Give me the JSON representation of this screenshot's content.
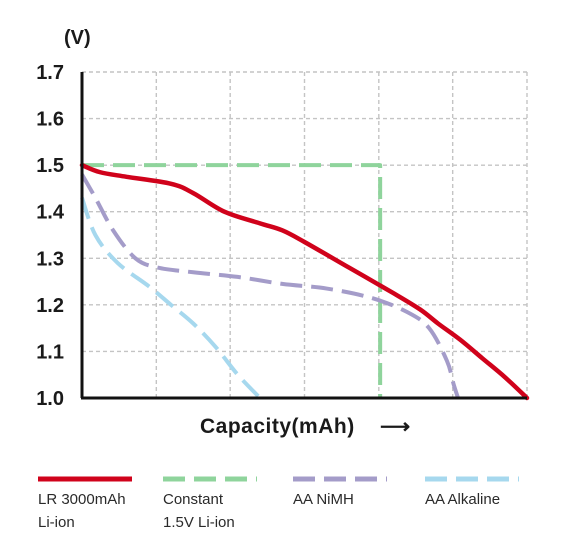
{
  "chart_data": {
    "type": "line",
    "title": "",
    "ylabel": "(V)",
    "xlabel": "Capacity(mAh)",
    "x_arrow": "⟶",
    "ylim": [
      1.0,
      1.7
    ],
    "xlim": [
      0,
      10
    ],
    "yticks": [
      "1.7",
      "1.6",
      "1.5",
      "1.4",
      "1.3",
      "1.2",
      "1.1",
      "1.0"
    ],
    "ytick_values": [
      1.7,
      1.6,
      1.5,
      1.4,
      1.3,
      1.2,
      1.1,
      1.0
    ],
    "xgrid": [
      0,
      1.67,
      3.33,
      5.0,
      6.67,
      8.33,
      10
    ],
    "grid": true,
    "legend_position": "bottom",
    "series": [
      {
        "name": "LR 3000mAh Li-ion",
        "legend_lines": [
          "LR 3000mAh",
          "Li-ion"
        ],
        "color": "#d0021b",
        "style": "solid",
        "x": [
          0,
          0.4,
          1.0,
          2.0,
          2.5,
          3.2,
          4.0,
          4.5,
          5.0,
          6.0,
          7.0,
          7.6,
          8.0,
          8.5,
          9.0,
          9.5,
          10.0
        ],
        "y": [
          1.5,
          1.485,
          1.475,
          1.46,
          1.44,
          1.4,
          1.375,
          1.36,
          1.335,
          1.28,
          1.225,
          1.19,
          1.16,
          1.125,
          1.085,
          1.045,
          1.0
        ]
      },
      {
        "name": "Constant 1.5V Li-ion",
        "legend_lines": [
          "Constant",
          "1.5V Li-ion"
        ],
        "color": "#8fd49c",
        "style": "dashed",
        "x": [
          0,
          6.7,
          6.7
        ],
        "y": [
          1.5,
          1.5,
          1.0
        ]
      },
      {
        "name": "AA NiMH",
        "legend_lines": [
          "AA NiMH"
        ],
        "color": "#a49cc9",
        "style": "dashed",
        "x": [
          0,
          0.3,
          0.7,
          1.2,
          1.7,
          2.5,
          3.5,
          4.5,
          5.5,
          6.5,
          7.3,
          7.8,
          8.2,
          8.35,
          8.45
        ],
        "y": [
          1.48,
          1.43,
          1.36,
          1.3,
          1.28,
          1.27,
          1.26,
          1.245,
          1.235,
          1.215,
          1.185,
          1.15,
          1.08,
          1.03,
          1.0
        ]
      },
      {
        "name": "AA Alkaline",
        "legend_lines": [
          "AA Alkaline"
        ],
        "color": "#a6d8ee",
        "style": "dashed",
        "x": [
          0,
          0.3,
          0.8,
          1.5,
          2.0,
          2.5,
          3.0,
          3.5,
          4.0
        ],
        "y": [
          1.43,
          1.35,
          1.29,
          1.24,
          1.2,
          1.16,
          1.11,
          1.05,
          1.0
        ]
      }
    ]
  }
}
